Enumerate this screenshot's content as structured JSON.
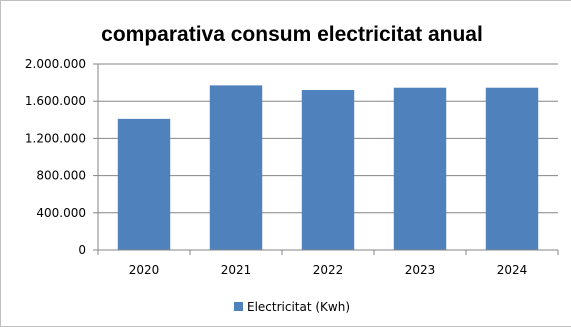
{
  "chart_data": {
    "type": "bar",
    "title": "comparativa consum electricitat anual",
    "categories": [
      "2020",
      "2021",
      "2022",
      "2023",
      "2024"
    ],
    "series": [
      {
        "name": "Electricitat (Kwh)",
        "color": "#4f81bd",
        "values": [
          1410000,
          1770000,
          1720000,
          1745000,
          1745000
        ]
      }
    ],
    "ylim": [
      0,
      2000000
    ],
    "yticks": [
      0,
      400000,
      800000,
      1200000,
      1600000,
      2000000
    ],
    "ytick_labels": [
      "0",
      "400.000",
      "800.000",
      "1.200.000",
      "1.600.000",
      "2.000.000"
    ],
    "grid": true,
    "legend": "bottom"
  }
}
